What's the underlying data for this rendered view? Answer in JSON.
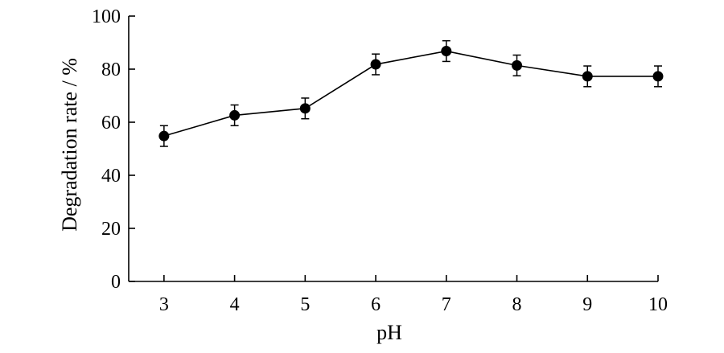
{
  "chart_data": {
    "type": "line",
    "title": "",
    "xlabel": "pH",
    "ylabel": "Degradation rate / %",
    "x": [
      3,
      4,
      5,
      6,
      7,
      8,
      9,
      10
    ],
    "xticks": [
      "3",
      "4",
      "5",
      "6",
      "7",
      "8",
      "9",
      "10"
    ],
    "yticks": [
      "0",
      "20",
      "40",
      "60",
      "80",
      "100"
    ],
    "xlim": [
      2.5,
      10
    ],
    "ylim": [
      0,
      100
    ],
    "grid": false,
    "series": [
      {
        "values": [
          54.8,
          62.6,
          65.2,
          81.8,
          86.8,
          81.4,
          77.3,
          77.3
        ],
        "errors": [
          3.9,
          3.9,
          3.9,
          3.9,
          3.9,
          3.9,
          3.9,
          3.9
        ],
        "color": "#000000",
        "marker": "filled-circle"
      }
    ]
  }
}
